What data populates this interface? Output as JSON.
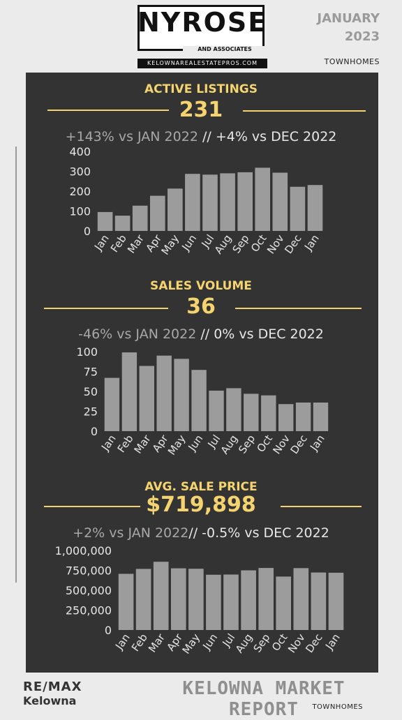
{
  "header": {
    "logo_name": "NYROSE",
    "logo_sub": "AND ASSOCIATES",
    "logo_url": "KELOWNAREALESTATEPROS.COM",
    "month": "JANUARY",
    "year": "2023",
    "property_type": "TOWNHOMES"
  },
  "sections": [
    {
      "title": "ACTIVE LISTINGS",
      "value": "231",
      "cmp_left": "+143% vs JAN 2022",
      "cmp_sep": " // ",
      "cmp_right": "+4% vs DEC 2022"
    },
    {
      "title": "SALES VOLUME",
      "value": "36",
      "cmp_left": "-46% vs JAN 2022",
      "cmp_sep": " // ",
      "cmp_right": "0% vs DEC 2022"
    },
    {
      "title": "AVG. SALE PRICE",
      "value": "$719,898",
      "cmp_left": "+2% vs JAN 2022",
      "cmp_sep": "// ",
      "cmp_right": "-0.5% vs DEC 2022"
    }
  ],
  "chart_data": [
    {
      "type": "bar",
      "categories": [
        "Jan",
        "Feb",
        "Mar",
        "Apr",
        "May",
        "Jun",
        "Jul",
        "Aug",
        "Sep",
        "Oct",
        "Nov",
        "Dec",
        "Jan"
      ],
      "values": [
        95,
        77,
        127,
        177,
        213,
        287,
        283,
        290,
        295,
        318,
        293,
        222,
        231
      ],
      "ylim": [
        0,
        400
      ],
      "yticks": [
        "0",
        "100",
        "200",
        "300",
        "400"
      ],
      "bar_color": "#9c9c9c"
    },
    {
      "type": "bar",
      "categories": [
        "Jan",
        "Feb",
        "Mar",
        "Apr",
        "May",
        "Jun",
        "Jul",
        "Aug",
        "Sep",
        "Oct",
        "Nov",
        "Dec",
        "Jan"
      ],
      "values": [
        67,
        99,
        82,
        95,
        91,
        77,
        51,
        54,
        47,
        45,
        34,
        36,
        36
      ],
      "ylim": [
        0,
        100
      ],
      "yticks": [
        "0",
        "25",
        "50",
        "75",
        "100"
      ],
      "bar_color": "#9c9c9c"
    },
    {
      "type": "bar",
      "categories": [
        "Jan",
        "Feb",
        "Mar",
        "Apr",
        "May",
        "Jun",
        "Jul",
        "Aug",
        "Sep",
        "Oct",
        "Nov",
        "Dec",
        "Jan"
      ],
      "values": [
        706000,
        768000,
        858000,
        775000,
        770000,
        695000,
        697000,
        750000,
        780000,
        672000,
        778000,
        723000,
        719898
      ],
      "ylim": [
        0,
        1000000
      ],
      "yticks": [
        "0",
        "250,000",
        "500,000",
        "750,000",
        "1,000,000"
      ],
      "bar_color": "#9c9c9c"
    }
  ],
  "footer": {
    "brand": "RE/MAX",
    "city": "Kelowna",
    "title": "KELOWNA MARKET REPORT",
    "property_type": "TOWNHOMES"
  }
}
